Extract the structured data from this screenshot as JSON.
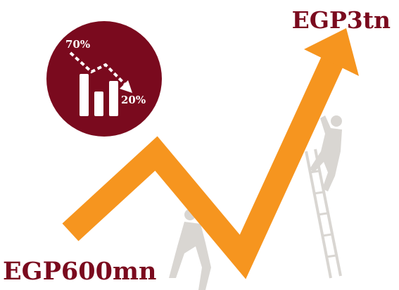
{
  "infographic": {
    "start_label": "EGP600mn",
    "end_label": "EGP3tn",
    "icon": {
      "high_label": "70%",
      "low_label": "20%"
    }
  }
}
